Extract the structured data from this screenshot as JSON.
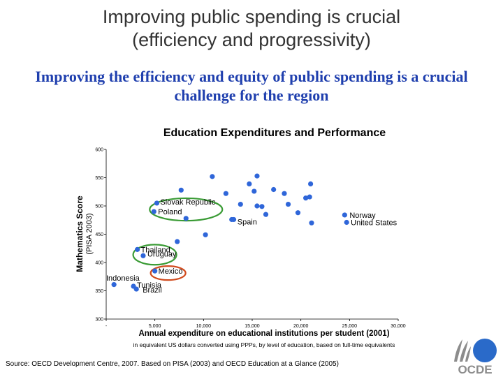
{
  "slide": {
    "title_lines": [
      "Improving public spending is crucial",
      "(efficiency and progressivity)"
    ],
    "subtitle_lines": [
      "Improving the efficiency and equity of public spending is a crucial",
      "challenge for the region"
    ],
    "source": "Source: OECD Development Centre, 2007. Based on PISA (2003) and OECD Education at a Glance  (2005)",
    "logo_text": "OCDE"
  },
  "colors": {
    "point": "#2f66d9",
    "highlight_green": "#3a9b35",
    "highlight_red": "#d14b1e",
    "title_gray": "#333333",
    "subtitle_blue": "#1f3fae",
    "logo_blue": "#2a6ac9",
    "logo_gray": "#8c8c8c"
  },
  "chart_data": {
    "type": "scatter",
    "title": "Education Expenditures and Performance",
    "ylabel": "Mathematics Score",
    "ylabel_sub": "(PISA 2003)",
    "xlabel": "Annual expenditure on educational institutions per student (2001)",
    "xlabel_sub": "in equivalent US dollars converted using PPPs, by level of education, based on full-time equivalents",
    "xlim": [
      0,
      30000
    ],
    "ylim": [
      300,
      600
    ],
    "x_ticks": [
      0,
      5000,
      10000,
      15000,
      20000,
      25000,
      30000
    ],
    "x_tick_labels": [
      "-",
      "5,000",
      "10,000",
      "15,000",
      "20,000",
      "25,000",
      "30,000"
    ],
    "y_ticks": [
      300,
      350,
      400,
      450,
      500,
      550,
      600
    ],
    "y_tick_labels": [
      "300",
      "350",
      "400",
      "450",
      "500",
      "550",
      "600"
    ],
    "grid": false,
    "points": [
      {
        "x": 800,
        "y": 361,
        "label": "Indonesia"
      },
      {
        "x": 2800,
        "y": 358,
        "label": "Tunisia"
      },
      {
        "x": 3100,
        "y": 353,
        "label": "Brazil"
      },
      {
        "x": 3200,
        "y": 423,
        "label": "Thailand"
      },
      {
        "x": 3800,
        "y": 412,
        "label": "Uruguay"
      },
      {
        "x": 5000,
        "y": 385,
        "label": "Mexico"
      },
      {
        "x": 4900,
        "y": 490,
        "label": "Poland"
      },
      {
        "x": 5200,
        "y": 505,
        "label": "Slovak Republic"
      },
      {
        "x": 12900,
        "y": 476,
        "label": "Spain"
      },
      {
        "x": 24500,
        "y": 484,
        "label": "Norway"
      },
      {
        "x": 24700,
        "y": 471,
        "label": "United States"
      },
      {
        "x": 7700,
        "y": 528,
        "label": ""
      },
      {
        "x": 8200,
        "y": 478,
        "label": ""
      },
      {
        "x": 7300,
        "y": 437,
        "label": ""
      },
      {
        "x": 10200,
        "y": 449,
        "label": ""
      },
      {
        "x": 10900,
        "y": 552,
        "label": ""
      },
      {
        "x": 12300,
        "y": 522,
        "label": ""
      },
      {
        "x": 13100,
        "y": 476,
        "label": ""
      },
      {
        "x": 13800,
        "y": 503,
        "label": ""
      },
      {
        "x": 14700,
        "y": 539,
        "label": ""
      },
      {
        "x": 15200,
        "y": 526,
        "label": ""
      },
      {
        "x": 15500,
        "y": 553,
        "label": ""
      },
      {
        "x": 15500,
        "y": 500,
        "label": ""
      },
      {
        "x": 16000,
        "y": 499,
        "label": ""
      },
      {
        "x": 16400,
        "y": 485,
        "label": ""
      },
      {
        "x": 17200,
        "y": 529,
        "label": ""
      },
      {
        "x": 18300,
        "y": 522,
        "label": ""
      },
      {
        "x": 18700,
        "y": 503,
        "label": ""
      },
      {
        "x": 19700,
        "y": 488,
        "label": ""
      },
      {
        "x": 20500,
        "y": 514,
        "label": ""
      },
      {
        "x": 20900,
        "y": 516,
        "label": ""
      },
      {
        "x": 21000,
        "y": 539,
        "label": ""
      },
      {
        "x": 21100,
        "y": 470,
        "label": ""
      }
    ],
    "highlighted": [
      {
        "labels": [
          "Slovak Republic",
          "Poland"
        ],
        "color": "green"
      },
      {
        "labels": [
          "Thailand",
          "Uruguay"
        ],
        "color": "green"
      },
      {
        "labels": [
          "Mexico"
        ],
        "color": "red"
      }
    ]
  }
}
